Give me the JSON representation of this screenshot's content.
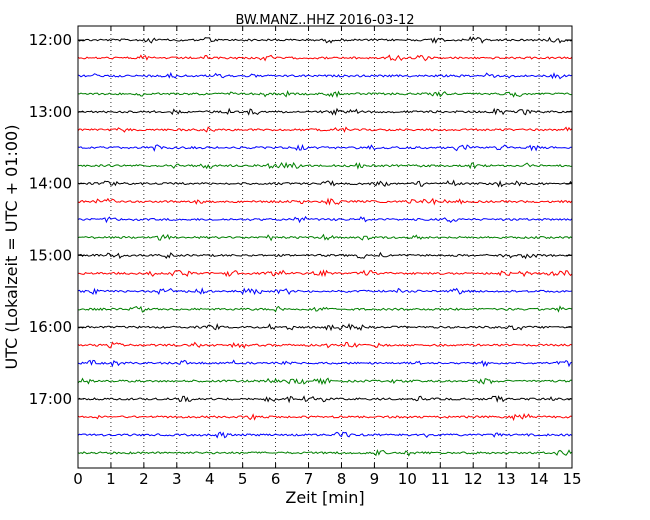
{
  "chart_data": {
    "type": "line",
    "title": "BW.MANZ..HHZ 2016-03-12",
    "xlabel": "Zeit  [min]",
    "ylabel": "UTC (Lokalzeit = UTC + 01:00)",
    "xlim": [
      0,
      15
    ],
    "x_ticks": [
      "0",
      "1",
      "2",
      "3",
      "4",
      "5",
      "6",
      "7",
      "8",
      "9",
      "10",
      "11",
      "12",
      "13",
      "14",
      "15"
    ],
    "y_tick_labels": [
      "12:00",
      "13:00",
      "14:00",
      "15:00",
      "16:00",
      "17:00"
    ],
    "row_start_times": [
      "12:00",
      "12:15",
      "12:30",
      "12:45",
      "13:00",
      "13:15",
      "13:30",
      "13:45",
      "14:00",
      "14:15",
      "14:30",
      "14:45",
      "15:00",
      "15:15",
      "15:30",
      "15:45",
      "16:00",
      "16:15",
      "16:30",
      "16:45",
      "17:00",
      "17:15",
      "17:30",
      "17:45"
    ],
    "trace_colors": [
      "#000000",
      "#ff0000",
      "#0000ff",
      "#008000"
    ],
    "vertical_grid": "dotted",
    "row_minutes": 15
  }
}
